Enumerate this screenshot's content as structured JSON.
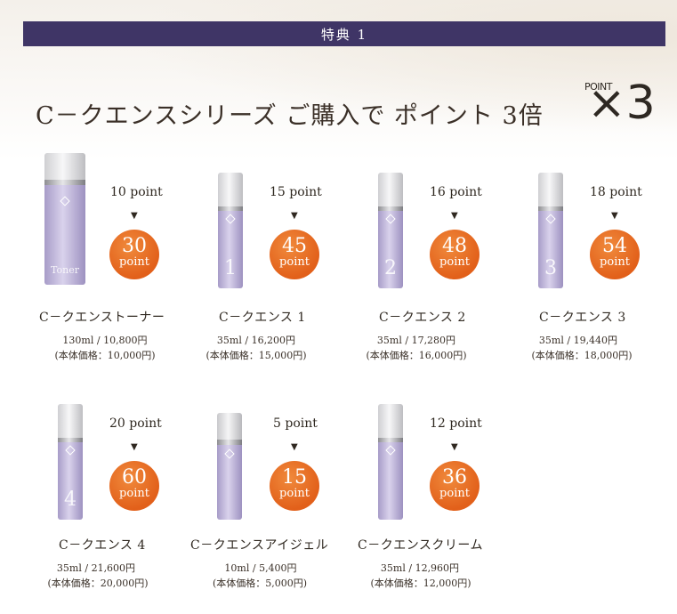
{
  "banner": {
    "label": "特典 1"
  },
  "headline": "C－クエンスシリーズ  ご購入で ポイント 3倍",
  "badge": {
    "label": "POINT",
    "multiplier": "×3"
  },
  "products": [
    {
      "name": "C－クエンストーナー",
      "base_points": "10 point",
      "multiplied": "30",
      "unit": "point",
      "price": "130ml / 10,800円",
      "base_price": "(本体価格：10,000円)",
      "bottle_label": "Toner"
    },
    {
      "name": "C－クエンス 1",
      "base_points": "15 point",
      "multiplied": "45",
      "unit": "point",
      "price": "35ml / 16,200円",
      "base_price": "(本体価格：15,000円)",
      "bottle_label": "1"
    },
    {
      "name": "C－クエンス 2",
      "base_points": "16 point",
      "multiplied": "48",
      "unit": "point",
      "price": "35ml / 17,280円",
      "base_price": "(本体価格：16,000円)",
      "bottle_label": "2"
    },
    {
      "name": "C－クエンス 3",
      "base_points": "18 point",
      "multiplied": "54",
      "unit": "point",
      "price": "35ml / 19,440円",
      "base_price": "(本体価格：18,000円)",
      "bottle_label": "3"
    },
    {
      "name": "C－クエンス 4",
      "base_points": "20 point",
      "multiplied": "60",
      "unit": "point",
      "price": "35ml / 21,600円",
      "base_price": "(本体価格：20,000円)",
      "bottle_label": "4"
    },
    {
      "name": "C－クエンスアイジェル",
      "base_points": "5 point",
      "multiplied": "15",
      "unit": "point",
      "price": "10ml / 5,400円",
      "base_price": "(本体価格：5,000円)",
      "bottle_label": ""
    },
    {
      "name": "C－クエンスクリーム",
      "base_points": "12 point",
      "multiplied": "36",
      "unit": "point",
      "price": "35ml / 12,960円",
      "base_price": "(本体価格：12,000円)",
      "bottle_label": ""
    }
  ],
  "colors": {
    "banner": "#3f3566",
    "accent": "#e2601a",
    "bottle": "#c2b8e0"
  }
}
